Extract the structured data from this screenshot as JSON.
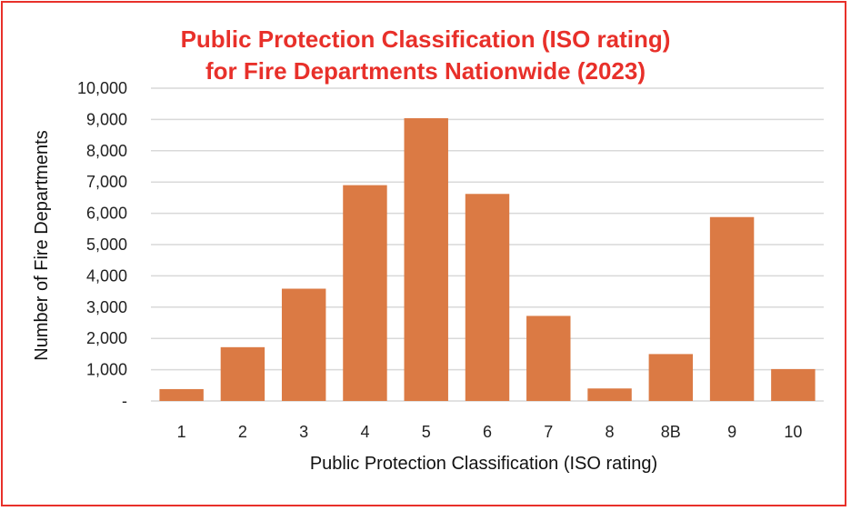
{
  "chart_data": {
    "type": "bar",
    "title_line1": "Public Protection Classification (ISO rating)",
    "title_line2": "for Fire Departments Nationwide (2023)",
    "xlabel": "Public Protection Classification (ISO rating)",
    "ylabel": "Number of Fire Departments",
    "categories": [
      "1",
      "2",
      "3",
      "4",
      "5",
      "6",
      "7",
      "8",
      "8B",
      "9",
      "10"
    ],
    "values": [
      380,
      1720,
      3590,
      6900,
      9040,
      6620,
      2720,
      400,
      1500,
      5880,
      1020
    ],
    "ylim": [
      0,
      10000
    ],
    "yticks": [
      "-",
      "1,000",
      "2,000",
      "3,000",
      "4,000",
      "5,000",
      "6,000",
      "7,000",
      "8,000",
      "9,000",
      "10,000"
    ],
    "grid": true,
    "bar_color": "#db7a44",
    "title_color": "#e8302a"
  }
}
